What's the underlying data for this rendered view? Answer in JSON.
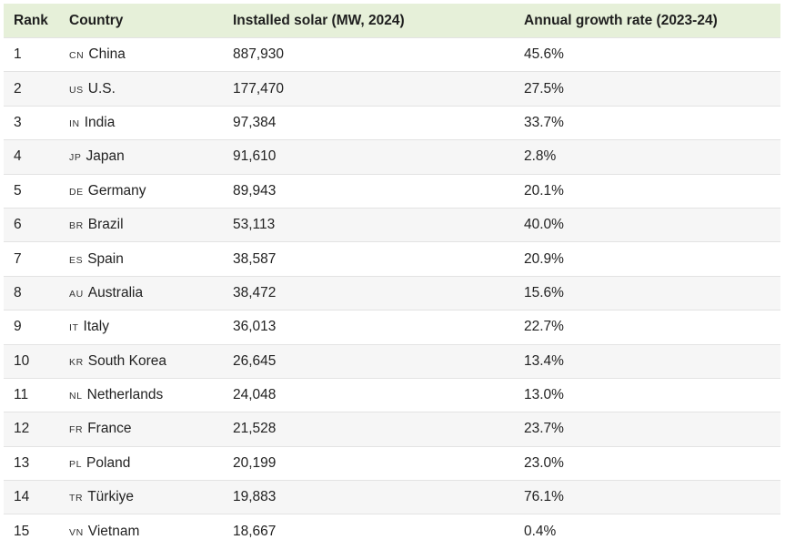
{
  "table": {
    "headers": {
      "rank": "Rank",
      "country": "Country",
      "solar": "Installed solar (MW, 2024)",
      "growth": "Annual growth rate (2023-24)"
    },
    "rows": [
      {
        "rank": "1",
        "code": "CN",
        "country": "China",
        "solar": "887,930",
        "growth": "45.6%"
      },
      {
        "rank": "2",
        "code": "US",
        "country": "U.S.",
        "solar": "177,470",
        "growth": "27.5%"
      },
      {
        "rank": "3",
        "code": "IN",
        "country": "India",
        "solar": "97,384",
        "growth": "33.7%"
      },
      {
        "rank": "4",
        "code": "JP",
        "country": "Japan",
        "solar": "91,610",
        "growth": "2.8%"
      },
      {
        "rank": "5",
        "code": "DE",
        "country": "Germany",
        "solar": "89,943",
        "growth": "20.1%"
      },
      {
        "rank": "6",
        "code": "BR",
        "country": "Brazil",
        "solar": "53,113",
        "growth": "40.0%"
      },
      {
        "rank": "7",
        "code": "ES",
        "country": "Spain",
        "solar": "38,587",
        "growth": "20.9%"
      },
      {
        "rank": "8",
        "code": "AU",
        "country": "Australia",
        "solar": "38,472",
        "growth": "15.6%"
      },
      {
        "rank": "9",
        "code": "IT",
        "country": "Italy",
        "solar": "36,013",
        "growth": "22.7%"
      },
      {
        "rank": "10",
        "code": "KR",
        "country": "South Korea",
        "solar": "26,645",
        "growth": "13.4%"
      },
      {
        "rank": "11",
        "code": "NL",
        "country": "Netherlands",
        "solar": "24,048",
        "growth": "13.0%"
      },
      {
        "rank": "12",
        "code": "FR",
        "country": "France",
        "solar": "21,528",
        "growth": "23.7%"
      },
      {
        "rank": "13",
        "code": "PL",
        "country": "Poland",
        "solar": "20,199",
        "growth": "23.0%"
      },
      {
        "rank": "14",
        "code": "TR",
        "country": "Türkiye",
        "solar": "19,883",
        "growth": "76.1%"
      },
      {
        "rank": "15",
        "code": "VN",
        "country": "Vietnam",
        "solar": "18,667",
        "growth": "0.4%"
      }
    ]
  },
  "colors": {
    "header_bg": "#e6f0d9",
    "alt_row_bg": "#f6f6f6",
    "row_border": "#e3e3e3"
  }
}
